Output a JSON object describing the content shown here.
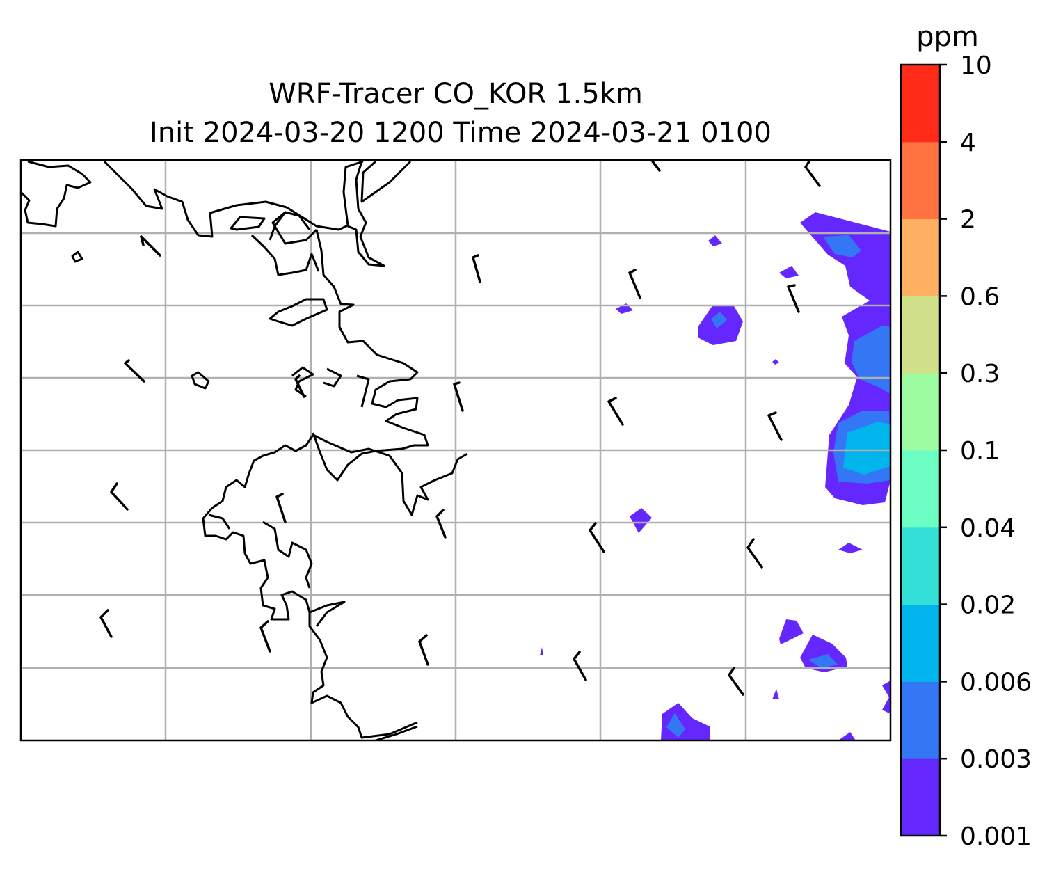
{
  "title": {
    "line1": "WRF-Tracer CO_KOR 1.5km",
    "line2": "Init 2024-03-20 1200 Time 2024-03-21 0100"
  },
  "colorbar": {
    "unit": "ppm",
    "levels": [
      "0.001",
      "0.003",
      "0.006",
      "0.02",
      "0.04",
      "0.1",
      "0.3",
      "0.6",
      "2",
      "4",
      "10"
    ],
    "colors": [
      "#6428fe",
      "#3477f5",
      "#00b4ec",
      "#33e0d8",
      "#6bfdc2",
      "#9cfca0",
      "#d0e088",
      "#ffb060",
      "#ff7340",
      "#ff2a18"
    ]
  },
  "map": {
    "gridline_color": "#b0b0b0",
    "coastline_color": "#000000",
    "field": "CO tracer concentration (filled contours)",
    "overlay": "wind barbs"
  }
}
